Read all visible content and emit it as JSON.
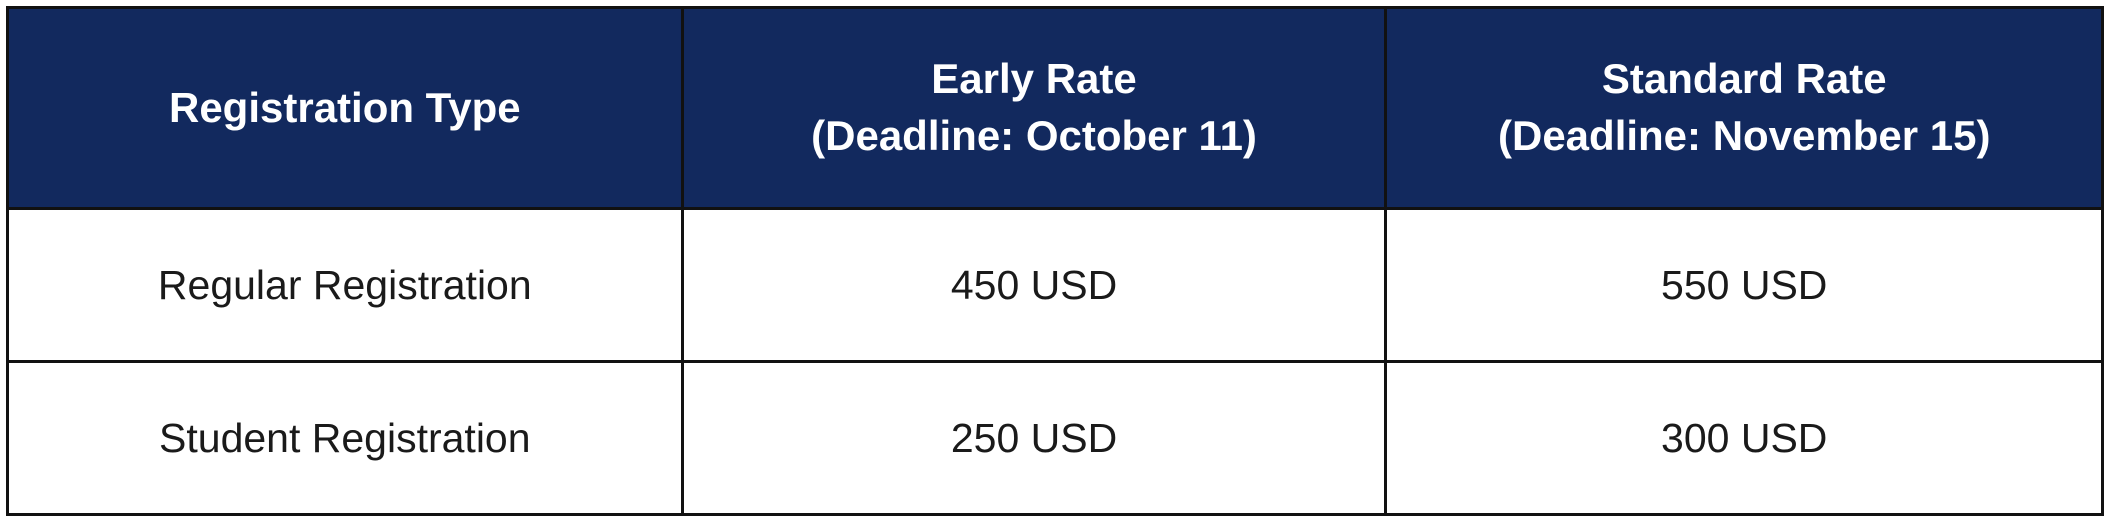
{
  "table": {
    "header": {
      "col1": "Registration Type",
      "col2_line1": "Early Rate",
      "col2_line2": "(Deadline: October 11)",
      "col3_line1": "Standard Rate",
      "col3_line2": "(Deadline: November 15)"
    },
    "rows": [
      {
        "type": "Regular Registration",
        "early": "450 USD",
        "standard": "550 USD"
      },
      {
        "type": "Student Registration",
        "early": "250 USD",
        "standard": "300 USD"
      }
    ]
  },
  "colors": {
    "header_bg": "#12295e",
    "header_text": "#ffffff",
    "border": "#111111",
    "body_text": "#1a1a1a"
  }
}
